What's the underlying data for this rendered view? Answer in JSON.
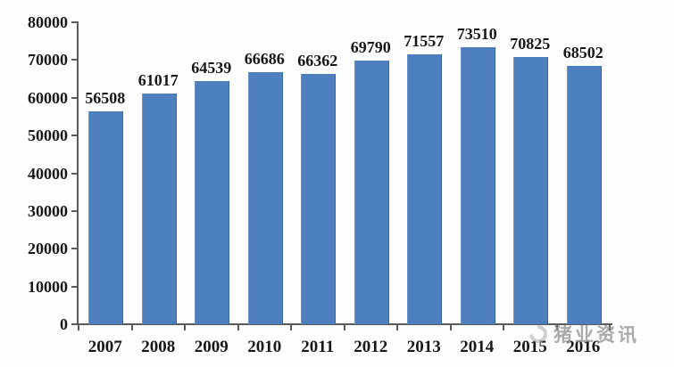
{
  "chart_data": {
    "type": "bar",
    "title": "",
    "xlabel": "",
    "ylabel": "",
    "categories": [
      "2007",
      "2008",
      "2009",
      "2010",
      "2011",
      "2012",
      "2013",
      "2014",
      "2015",
      "2016"
    ],
    "values": [
      56508,
      61017,
      64539,
      66686,
      66362,
      69790,
      71557,
      73510,
      70825,
      68502
    ],
    "value_labels": [
      "56508",
      "61017",
      "64539",
      "66686",
      "66362",
      "69790",
      "71557",
      "73510",
      "70825",
      "68502"
    ],
    "ylim": [
      0,
      80000
    ],
    "ytick_step": 10000,
    "yticks": [
      "80000",
      "70000",
      "60000",
      "50000",
      "40000",
      "30000",
      "20000",
      "10000",
      "0"
    ],
    "grid": false,
    "legend": "none",
    "bar_color": "#4d7ebd",
    "axis_color": "#5a5a5a",
    "text_color": "#171717"
  },
  "watermark": {
    "logo_icon": "swirl-logo",
    "text": "猪业资讯",
    "color": "#8f8f8f"
  }
}
